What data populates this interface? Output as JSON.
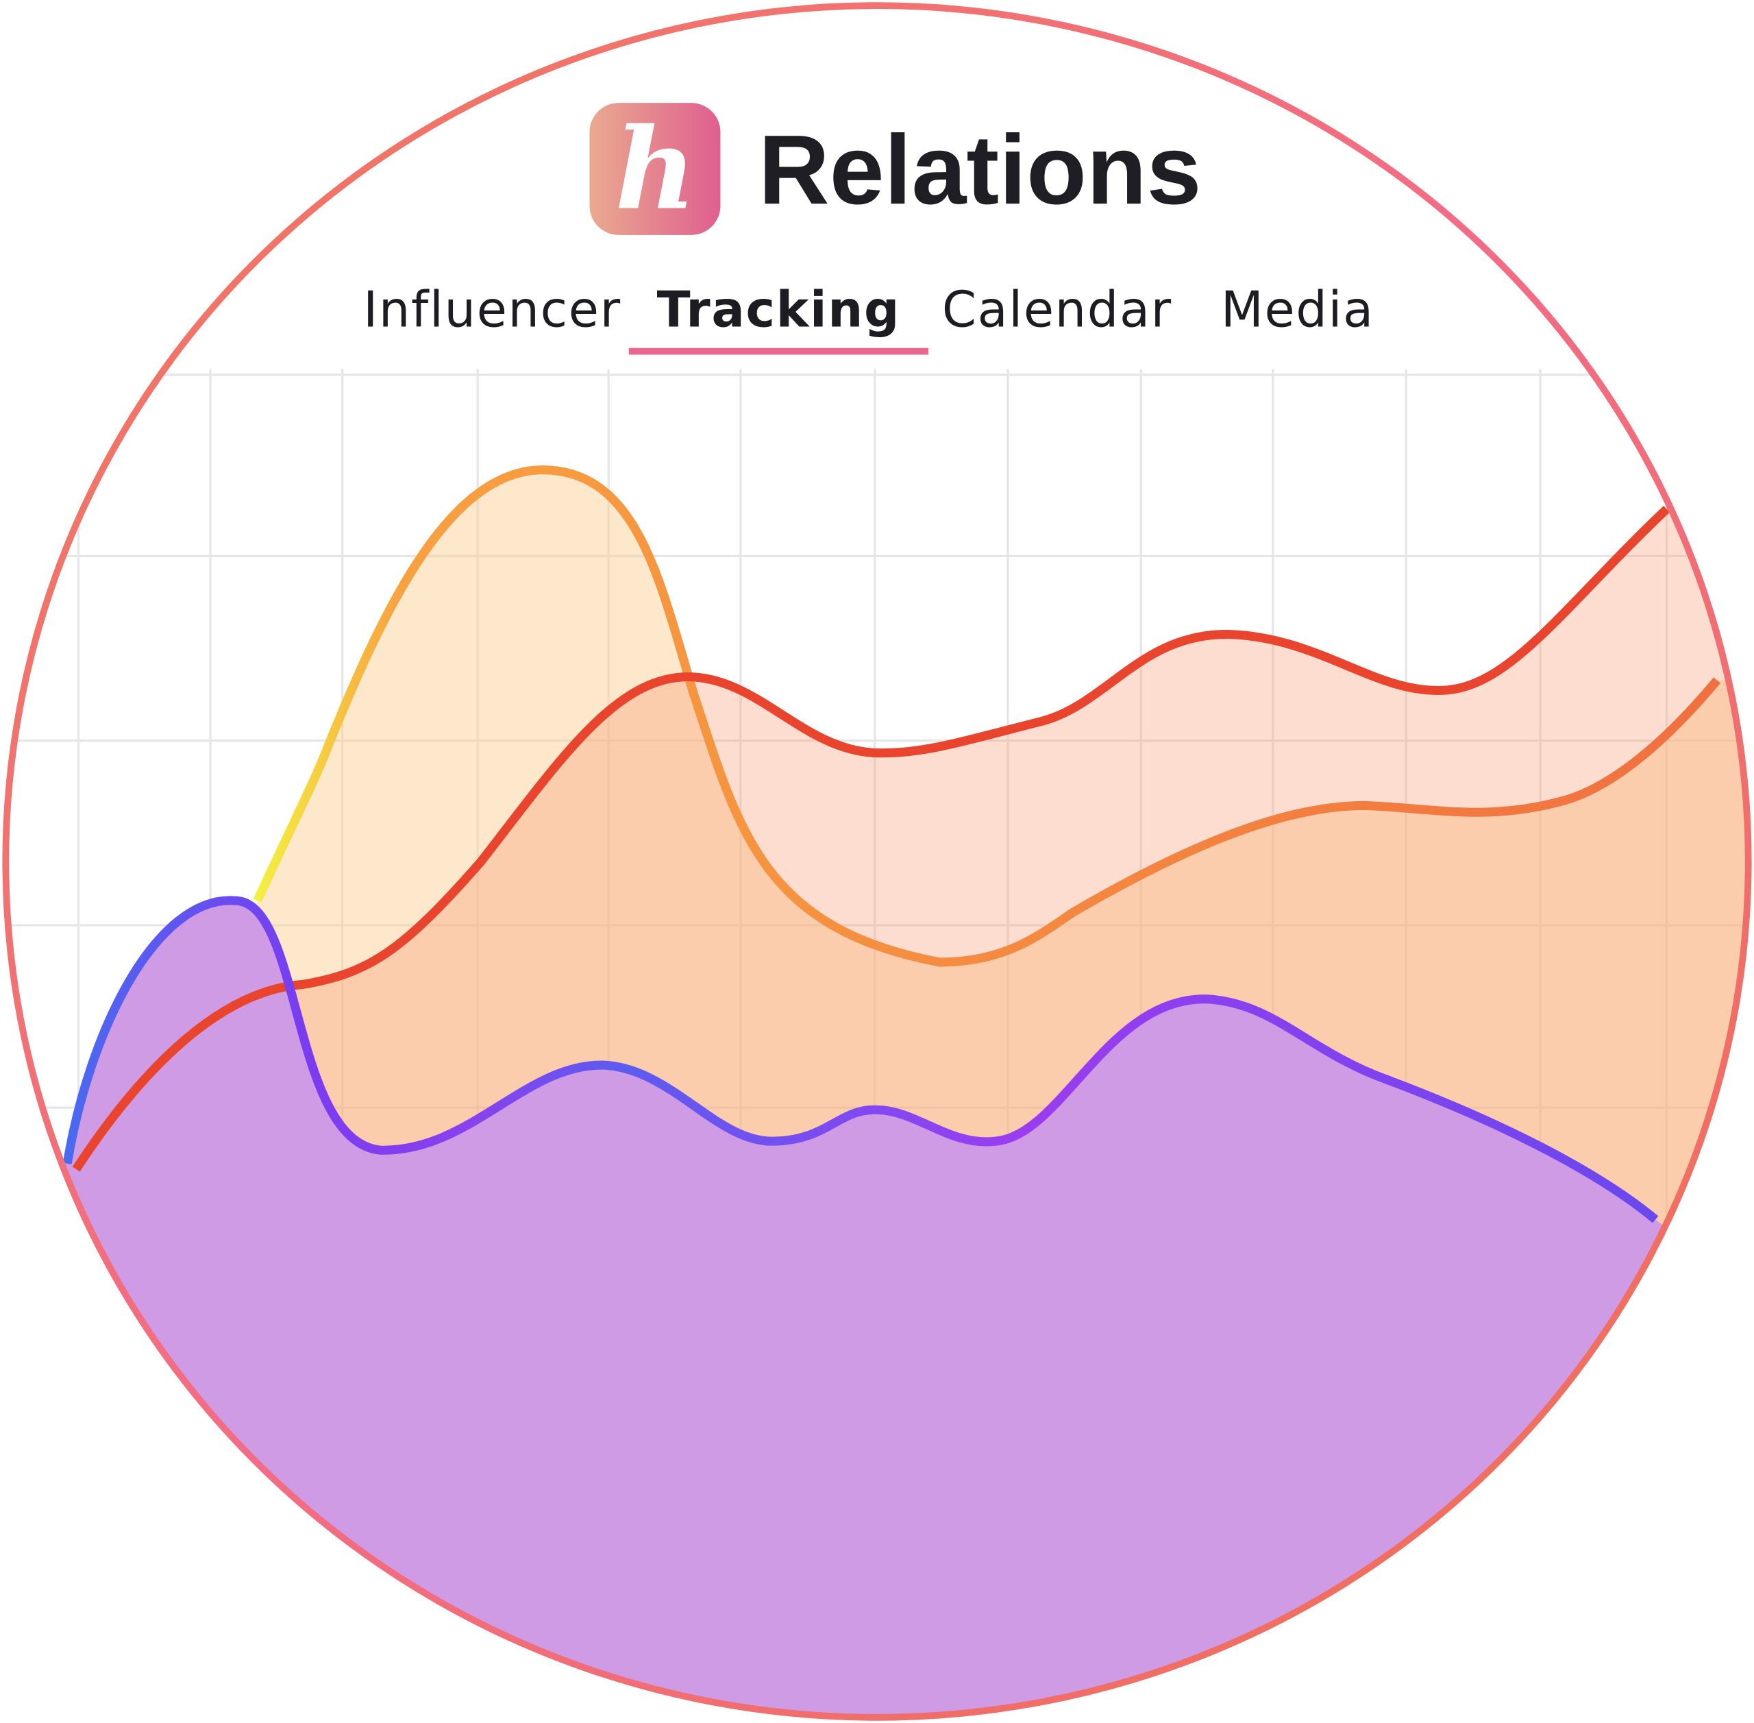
{
  "header": {
    "logo_letter": "h",
    "title": "Relations"
  },
  "nav": {
    "items": [
      "Influencer",
      "Tracking",
      "Calendar",
      "Media"
    ],
    "active": 1
  }
}
